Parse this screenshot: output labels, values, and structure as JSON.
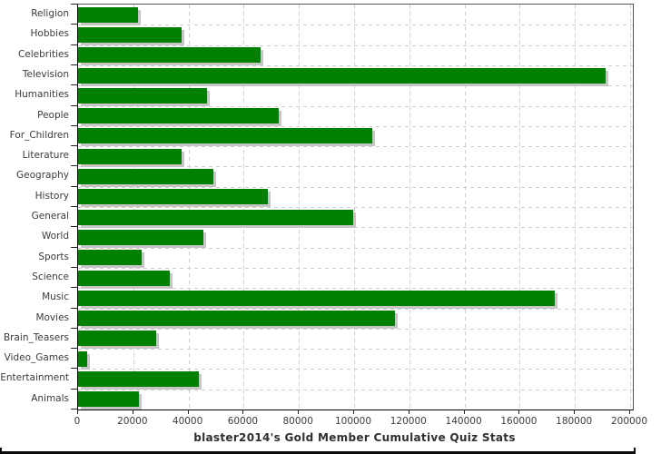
{
  "chart_data": {
    "type": "bar",
    "orientation": "horizontal",
    "title": "blaster2014's Gold Member Cumulative Quiz Stats",
    "categories": [
      "Religion",
      "Hobbies",
      "Celebrities",
      "Television",
      "Humanities",
      "People",
      "For_Children",
      "Literature",
      "Geography",
      "History",
      "General",
      "World",
      "Sports",
      "Science",
      "Music",
      "Movies",
      "Brain_Teasers",
      "Video_Games",
      "Entertainment",
      "Animals"
    ],
    "values": [
      21600,
      37500,
      66100,
      191000,
      46600,
      72700,
      106400,
      37600,
      49100,
      68800,
      99500,
      45300,
      23000,
      33200,
      172800,
      114900,
      28200,
      3200,
      43700,
      21900
    ],
    "xlabel": "",
    "ylabel": "",
    "xlim": [
      0,
      200000
    ],
    "x_ticks": [
      0,
      20000,
      40000,
      60000,
      80000,
      100000,
      120000,
      140000,
      160000,
      180000,
      200000
    ],
    "x_tick_labels": [
      "0",
      "20000",
      "40000",
      "60000",
      "80000",
      "100000",
      "120000",
      "140000",
      "160000",
      "180000",
      "200000"
    ],
    "grid": "dashed-both-axes",
    "legend": "none",
    "bar_color": "#008000",
    "bar_shadow_color": "#c6c6c6",
    "gridline_color": "#cfcfcf",
    "axis_color": "#000000",
    "label_color": "#3b3b3b"
  }
}
